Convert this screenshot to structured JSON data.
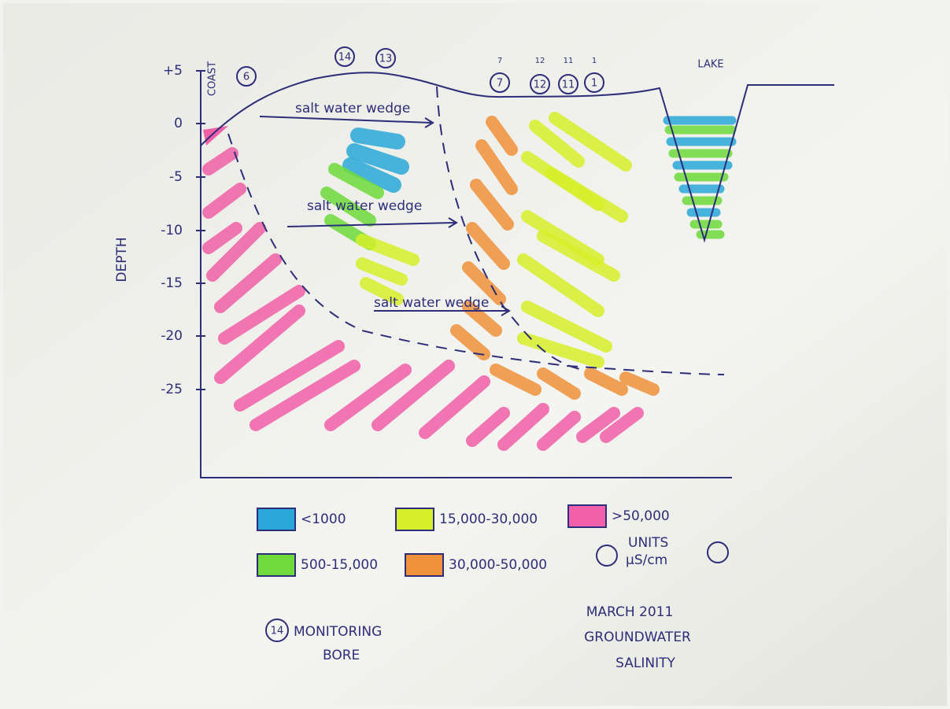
{
  "axis": {
    "label": "DEPTH",
    "ticks": [
      "+5",
      "0",
      "-5",
      "-10",
      "-15",
      "-20",
      "-25"
    ]
  },
  "places": {
    "coast": "COAST",
    "lake": "LAKE"
  },
  "bores": [
    {
      "label": "6"
    },
    {
      "label": "14"
    },
    {
      "label": "13"
    },
    {
      "label": "7"
    },
    {
      "label": "12"
    },
    {
      "label": "11"
    },
    {
      "label": "1"
    }
  ],
  "bore_marks": [
    "7",
    "12",
    "11",
    "1"
  ],
  "arrows": [
    "salt water wedge",
    "salt water wedge",
    "salt water wedge"
  ],
  "legend": [
    {
      "label": "<1000"
    },
    {
      "label": "15,000-30,000"
    },
    {
      "label": ">50,000"
    },
    {
      "label": "500-15,000"
    },
    {
      "label": "30,000-50,000"
    }
  ],
  "units": {
    "title": "UNITS",
    "value": "µS/cm"
  },
  "key": {
    "symbol": "14",
    "label": "MONITORING",
    "label2": "BORE"
  },
  "caption": [
    "MARCH 2011",
    "GROUNDWATER",
    "SALINITY"
  ]
}
